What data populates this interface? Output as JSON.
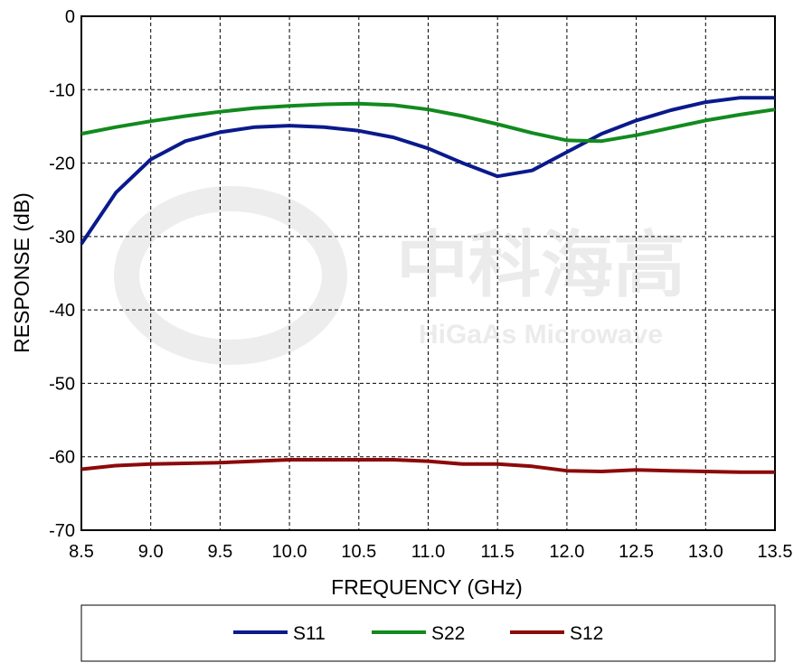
{
  "chart_data": {
    "type": "line",
    "xlabel": "FREQUENCY (GHz)",
    "ylabel": "RESPONSE (dB)",
    "watermark": [
      "中科海高",
      "HiGaAs Microwave"
    ],
    "x": [
      8.5,
      8.75,
      9.0,
      9.25,
      9.5,
      9.75,
      10.0,
      10.25,
      10.5,
      10.75,
      11.0,
      11.25,
      11.5,
      11.75,
      12.0,
      12.25,
      12.5,
      12.75,
      13.0,
      13.25,
      13.5
    ],
    "series": [
      {
        "name": "S11",
        "color": "#0a1a8c",
        "values": [
          -31,
          -24,
          -19.5,
          -17,
          -15.8,
          -15.1,
          -14.9,
          -15.1,
          -15.6,
          -16.5,
          -18,
          -20,
          -21.8,
          -21,
          -18.5,
          -16,
          -14.2,
          -12.8,
          -11.7,
          -11.1,
          -11.1
        ]
      },
      {
        "name": "S22",
        "color": "#128a1e",
        "values": [
          -16,
          -15.1,
          -14.3,
          -13.6,
          -13,
          -12.5,
          -12.2,
          -12,
          -11.9,
          -12.1,
          -12.7,
          -13.6,
          -14.7,
          -15.9,
          -16.9,
          -17,
          -16.2,
          -15.2,
          -14.2,
          -13.4,
          -12.7
        ]
      },
      {
        "name": "S12",
        "color": "#8c0a0a",
        "values": [
          -61.7,
          -61.2,
          -61,
          -60.9,
          -60.8,
          -60.6,
          -60.4,
          -60.4,
          -60.4,
          -60.4,
          -60.6,
          -61,
          -61,
          -61.3,
          -61.9,
          -62,
          -61.8,
          -61.9,
          -62,
          -62.1,
          -62.1
        ]
      }
    ],
    "xlim": [
      8.5,
      13.5
    ],
    "xticks": [
      8.5,
      {
        "value": 9.0,
        "label": "9.0"
      },
      9.5,
      {
        "value": 10.0,
        "label": "10.0"
      },
      10.5,
      {
        "value": 11.0,
        "label": "11.0"
      },
      11.5,
      {
        "value": 12.0,
        "label": "12.0"
      },
      12.5,
      {
        "value": 13.0,
        "label": "13.0"
      },
      13.5
    ],
    "ylim": [
      -70,
      0
    ],
    "yticks": [
      0,
      -10,
      -20,
      -30,
      -40,
      -50,
      -60,
      -70
    ],
    "grid": true,
    "legend": "bottom"
  }
}
